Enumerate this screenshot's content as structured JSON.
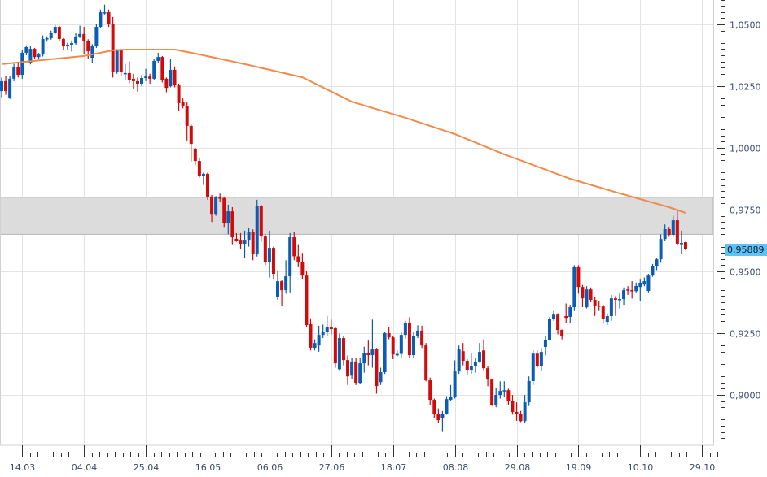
{
  "chart_data": {
    "type": "candlestick",
    "title": "",
    "xlabel": "",
    "ylabel": "",
    "grid": true,
    "colors": {
      "up": "#0b5cb5",
      "down": "#d10a0a",
      "moving_average": "#f28a4b",
      "band": "#dcdcdc",
      "last_price_badge": "#5ec3f2"
    },
    "ylim": [
      0.882,
      1.06
    ],
    "y_axis": {
      "position": "right",
      "tick_values": [
        1.05,
        1.025,
        1.0,
        0.975,
        0.95,
        0.925,
        0.9
      ],
      "tick_labels": [
        "1,0500",
        "1,0250",
        "1,0000",
        "0,9750",
        "0,9500",
        "0,9250",
        "0,9000"
      ]
    },
    "x_axis": {
      "tick_candle_index": [
        5,
        20,
        35,
        50,
        65,
        80,
        95,
        110,
        125,
        140,
        155,
        170
      ],
      "tick_labels": [
        "14.03",
        "04.04",
        "25.04",
        "16.05",
        "06.06",
        "27.06",
        "18.07",
        "08.08",
        "29.08",
        "19.09",
        "10.10",
        "29.10"
      ]
    },
    "band": {
      "low": 0.965,
      "high": 0.98
    },
    "last_price": {
      "value": 0.95889,
      "label": "0,95889"
    },
    "candles_ohlc": [
      [
        1.023,
        1.0285,
        1.0205,
        1.027
      ],
      [
        1.027,
        1.029,
        1.0215,
        1.023
      ],
      [
        1.0204,
        1.029,
        1.0198,
        1.028
      ],
      [
        1.028,
        1.034,
        1.027,
        1.0326
      ],
      [
        1.0326,
        1.0345,
        1.0285,
        1.0296
      ],
      [
        1.0296,
        1.0395,
        1.028,
        1.0385
      ],
      [
        1.0385,
        1.0415,
        1.0375,
        1.0408
      ],
      [
        1.0345,
        1.0412,
        1.0338,
        1.0401
      ],
      [
        1.0401,
        1.0405,
        1.036,
        1.0368
      ],
      [
        1.0368,
        1.0385,
        1.0358,
        1.0378
      ],
      [
        1.0378,
        1.0455,
        1.037,
        1.0441
      ],
      [
        1.0441,
        1.0452,
        1.043,
        1.0444
      ],
      [
        1.0444,
        1.0475,
        1.0438,
        1.0467
      ],
      [
        1.0467,
        1.0498,
        1.046,
        1.049
      ],
      [
        1.049,
        1.0495,
        1.0432,
        1.0441
      ],
      [
        1.0441,
        1.0445,
        1.0398,
        1.0411
      ],
      [
        1.0411,
        1.0425,
        1.0395,
        1.0418
      ],
      [
        1.0418,
        1.0435,
        1.039,
        1.0424
      ],
      [
        1.0424,
        1.0465,
        1.0418,
        1.0451
      ],
      [
        1.0451,
        1.0495,
        1.0445,
        1.0461
      ],
      [
        1.0461,
        1.049,
        1.038,
        1.0434
      ],
      [
        1.0434,
        1.044,
        1.036,
        1.0391
      ],
      [
        1.0365,
        1.042,
        1.0345,
        1.0411
      ],
      [
        1.0411,
        1.05,
        1.0405,
        1.049
      ],
      [
        1.049,
        1.056,
        1.0485,
        1.0549
      ],
      [
        1.0546,
        1.058,
        1.054,
        1.0549
      ],
      [
        1.0549,
        1.056,
        1.049,
        1.05
      ],
      [
        1.05,
        1.053,
        1.0285,
        1.0309
      ],
      [
        1.0309,
        1.04,
        1.03,
        1.0395
      ],
      [
        1.0395,
        1.04,
        1.029,
        1.0309
      ],
      [
        1.03,
        1.034,
        1.0275,
        1.0303
      ],
      [
        1.0303,
        1.035,
        1.0262,
        1.0273
      ],
      [
        1.028,
        1.03,
        1.024,
        1.027
      ],
      [
        1.027,
        1.0285,
        1.0228,
        1.026
      ],
      [
        1.026,
        1.0295,
        1.025,
        1.0283
      ],
      [
        1.0283,
        1.032,
        1.027,
        1.0289
      ],
      [
        1.0289,
        1.03,
        1.026,
        1.028
      ],
      [
        1.028,
        1.036,
        1.0275,
        1.0352
      ],
      [
        1.0352,
        1.0385,
        1.0345,
        1.0368
      ],
      [
        1.0368,
        1.0372,
        1.0265,
        1.0273
      ],
      [
        1.028,
        1.0285,
        1.0225,
        1.0243
      ],
      [
        1.025,
        1.036,
        1.0245,
        1.0316
      ],
      [
        1.0316,
        1.033,
        1.0245,
        1.0253
      ],
      [
        1.0253,
        1.026,
        1.015,
        1.0181
      ],
      [
        1.0185,
        1.02,
        1.016,
        1.0168
      ],
      [
        1.0168,
        1.0185,
        1.003,
        1.0089
      ],
      [
        1.0089,
        1.0095,
        0.9945,
        1.0016
      ],
      [
        0.9997,
        1.0,
        0.993,
        0.9947
      ],
      [
        0.9947,
        0.996,
        0.988,
        0.9885
      ],
      [
        0.9885,
        0.99,
        0.985,
        0.9895
      ],
      [
        0.9895,
        0.99,
        0.979,
        0.9803
      ],
      [
        0.9803,
        0.981,
        0.97,
        0.9733
      ],
      [
        0.9733,
        0.9805,
        0.9725,
        0.9799
      ],
      [
        0.9799,
        0.9815,
        0.978,
        0.9797
      ],
      [
        0.9797,
        0.98,
        0.968,
        0.9694
      ],
      [
        0.9694,
        0.977,
        0.965,
        0.9743
      ],
      [
        0.9743,
        0.976,
        0.961,
        0.9638
      ],
      [
        0.9632,
        0.9655,
        0.962,
        0.9625
      ],
      [
        0.9628,
        0.9655,
        0.959,
        0.9612
      ],
      [
        0.9612,
        0.9665,
        0.9555,
        0.9628
      ],
      [
        0.9628,
        0.9675,
        0.96,
        0.9658
      ],
      [
        0.9658,
        0.967,
        0.9545,
        0.9569
      ],
      [
        0.9569,
        0.979,
        0.956,
        0.9766
      ],
      [
        0.9766,
        0.977,
        0.962,
        0.9641
      ],
      [
        0.9641,
        0.965,
        0.9525,
        0.9536
      ],
      [
        0.9536,
        0.9665,
        0.9475,
        0.9595
      ],
      [
        0.9595,
        0.96,
        0.947,
        0.949
      ],
      [
        0.9395,
        0.95,
        0.9385,
        0.946
      ],
      [
        0.946,
        0.9465,
        0.936,
        0.9424
      ],
      [
        0.9424,
        0.9545,
        0.941,
        0.948
      ],
      [
        0.948,
        0.9655,
        0.9415,
        0.9638
      ],
      [
        0.9638,
        0.966,
        0.9545,
        0.9561
      ],
      [
        0.9561,
        0.961,
        0.952,
        0.9536
      ],
      [
        0.9536,
        0.9575,
        0.947,
        0.9483
      ],
      [
        0.9483,
        0.95,
        0.9275,
        0.9283
      ],
      [
        0.9286,
        0.931,
        0.918,
        0.9191
      ],
      [
        0.9191,
        0.9225,
        0.918,
        0.921
      ],
      [
        0.92,
        0.928,
        0.9175,
        0.9243
      ],
      [
        0.9243,
        0.9285,
        0.923,
        0.9256
      ],
      [
        0.9256,
        0.932,
        0.924,
        0.9273
      ],
      [
        0.9273,
        0.9305,
        0.9245,
        0.9266
      ],
      [
        0.927,
        0.9275,
        0.911,
        0.9128
      ],
      [
        0.9104,
        0.9248,
        0.91,
        0.923
      ],
      [
        0.923,
        0.924,
        0.912,
        0.9141
      ],
      [
        0.9141,
        0.916,
        0.904,
        0.9075
      ],
      [
        0.9078,
        0.915,
        0.9065,
        0.9135
      ],
      [
        0.9135,
        0.915,
        0.904,
        0.9049
      ],
      [
        0.9049,
        0.915,
        0.9045,
        0.9128
      ],
      [
        0.9128,
        0.9195,
        0.909,
        0.9171
      ],
      [
        0.9171,
        0.922,
        0.912,
        0.9161
      ],
      [
        0.9161,
        0.9305,
        0.911,
        0.9184
      ],
      [
        0.9184,
        0.919,
        0.9005,
        0.9036
      ],
      [
        0.9052,
        0.911,
        0.904,
        0.9092
      ],
      [
        0.9092,
        0.9255,
        0.9085,
        0.925
      ],
      [
        0.925,
        0.9275,
        0.9225,
        0.9233
      ],
      [
        0.9233,
        0.924,
        0.9145,
        0.9164
      ],
      [
        0.916,
        0.918,
        0.9155,
        0.9166
      ],
      [
        0.9166,
        0.9255,
        0.915,
        0.9243
      ],
      [
        0.9243,
        0.93,
        0.9228,
        0.9293
      ],
      [
        0.9293,
        0.9315,
        0.915,
        0.9161
      ],
      [
        0.9161,
        0.9255,
        0.915,
        0.924
      ],
      [
        0.924,
        0.9282,
        0.923,
        0.926
      ],
      [
        0.926,
        0.928,
        0.919,
        0.92
      ],
      [
        0.92,
        0.921,
        0.9055,
        0.9059
      ],
      [
        0.9059,
        0.907,
        0.896,
        0.898
      ],
      [
        0.898,
        0.8985,
        0.8905,
        0.8921
      ],
      [
        0.8921,
        0.8945,
        0.8885,
        0.8898
      ],
      [
        0.8905,
        0.8935,
        0.885,
        0.8924
      ],
      [
        0.8924,
        0.8995,
        0.892,
        0.8983
      ],
      [
        0.898,
        0.904,
        0.8975,
        0.8993
      ],
      [
        0.8993,
        0.914,
        0.8985,
        0.9095
      ],
      [
        0.9095,
        0.92,
        0.9085,
        0.9184
      ],
      [
        0.9177,
        0.921,
        0.912,
        0.9138
      ],
      [
        0.9138,
        0.9145,
        0.908,
        0.9102
      ],
      [
        0.9102,
        0.917,
        0.9085,
        0.9115
      ],
      [
        0.9115,
        0.915,
        0.909,
        0.9135
      ],
      [
        0.9135,
        0.921,
        0.913,
        0.9174
      ],
      [
        0.918,
        0.9225,
        0.91,
        0.9108
      ],
      [
        0.9108,
        0.9115,
        0.9035,
        0.9062
      ],
      [
        0.9062,
        0.9065,
        0.8955,
        0.896
      ],
      [
        0.896,
        0.903,
        0.895,
        0.9
      ],
      [
        0.9,
        0.9055,
        0.8985,
        0.9016
      ],
      [
        0.9016,
        0.9055,
        0.899,
        0.9019
      ],
      [
        0.9019,
        0.9025,
        0.896,
        0.8977
      ],
      [
        0.8977,
        0.9,
        0.892,
        0.8931
      ],
      [
        0.8931,
        0.897,
        0.8895,
        0.8921
      ],
      [
        0.8921,
        0.8935,
        0.889,
        0.8894
      ],
      [
        0.8894,
        0.9,
        0.8885,
        0.897
      ],
      [
        0.897,
        0.9075,
        0.8955,
        0.9056
      ],
      [
        0.9056,
        0.918,
        0.904,
        0.9167
      ],
      [
        0.9167,
        0.918,
        0.911,
        0.9115
      ],
      [
        0.9115,
        0.919,
        0.9095,
        0.9174
      ],
      [
        0.9194,
        0.924,
        0.916,
        0.9223
      ],
      [
        0.9223,
        0.9315,
        0.922,
        0.9309
      ],
      [
        0.9309,
        0.934,
        0.93,
        0.9325
      ],
      [
        0.9325,
        0.933,
        0.9245,
        0.9263
      ],
      [
        0.9263,
        0.9265,
        0.9225,
        0.924
      ],
      [
        0.9319,
        0.937,
        0.929,
        0.9312
      ],
      [
        0.9316,
        0.9365,
        0.929,
        0.9355
      ],
      [
        0.9355,
        0.9525,
        0.934,
        0.952
      ],
      [
        0.952,
        0.9525,
        0.941,
        0.9437
      ],
      [
        0.9437,
        0.9445,
        0.9355,
        0.9391
      ],
      [
        0.9355,
        0.944,
        0.935,
        0.9427
      ],
      [
        0.9427,
        0.9435,
        0.9375,
        0.9385
      ],
      [
        0.9385,
        0.9395,
        0.932,
        0.9362
      ],
      [
        0.9362,
        0.938,
        0.934,
        0.9358
      ],
      [
        0.9358,
        0.9365,
        0.929,
        0.9306
      ],
      [
        0.9296,
        0.933,
        0.9283,
        0.9319
      ],
      [
        0.9319,
        0.9405,
        0.93,
        0.9391
      ],
      [
        0.9391,
        0.94,
        0.932,
        0.9385
      ],
      [
        0.9385,
        0.941,
        0.935,
        0.9388
      ],
      [
        0.9388,
        0.9435,
        0.9365,
        0.9424
      ],
      [
        0.9427,
        0.944,
        0.9405,
        0.9424
      ],
      [
        0.9424,
        0.946,
        0.939,
        0.942
      ],
      [
        0.942,
        0.9455,
        0.9415,
        0.9441
      ],
      [
        0.9437,
        0.947,
        0.938,
        0.9454
      ],
      [
        0.9447,
        0.9475,
        0.944,
        0.946
      ],
      [
        0.9421,
        0.949,
        0.9415,
        0.9483
      ],
      [
        0.9483,
        0.953,
        0.9478,
        0.9523
      ],
      [
        0.9523,
        0.9555,
        0.9505,
        0.9549
      ],
      [
        0.9549,
        0.965,
        0.9535,
        0.9631
      ],
      [
        0.9631,
        0.969,
        0.9625,
        0.9671
      ],
      [
        0.9671,
        0.968,
        0.964,
        0.9648
      ],
      [
        0.9648,
        0.9725,
        0.964,
        0.9707
      ],
      [
        0.9707,
        0.975,
        0.9605,
        0.9612
      ],
      [
        0.9612,
        0.9665,
        0.957,
        0.9615
      ],
      [
        0.9618,
        0.962,
        0.9585,
        0.9589
      ]
    ],
    "moving_average": {
      "candle_index": [
        0,
        20,
        27,
        30,
        42,
        47,
        59,
        73,
        85,
        98,
        110,
        122,
        138,
        150,
        162,
        166
      ],
      "values": [
        1.0339,
        1.0372,
        1.0395,
        1.0398,
        1.0398,
        1.0382,
        1.0339,
        1.0286,
        1.0187,
        1.0122,
        1.0056,
        0.9974,
        0.9875,
        0.9816,
        0.976,
        0.9737
      ]
    }
  }
}
